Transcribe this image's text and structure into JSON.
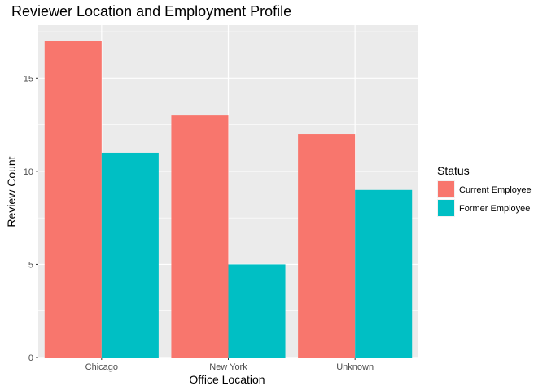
{
  "chart_data": {
    "type": "bar",
    "title": "Reviewer Location and Employment Profile",
    "xlabel": "Office Location",
    "ylabel": "Review Count",
    "categories": [
      "Chicago",
      "New York",
      "Unknown"
    ],
    "series": [
      {
        "name": "Current Employee",
        "values": [
          17,
          13,
          12
        ],
        "color": "#F8766D"
      },
      {
        "name": "Former Employee",
        "values": [
          11,
          5,
          9
        ],
        "color": "#00BFC4"
      }
    ],
    "ylim": [
      0,
      17.85
    ],
    "yticks": [
      0,
      5,
      10,
      15
    ],
    "grid": true,
    "legend": {
      "title": "Status",
      "position": "right"
    },
    "panel_background": "#EBEBEB",
    "grid_color": "#FFFFFF"
  }
}
